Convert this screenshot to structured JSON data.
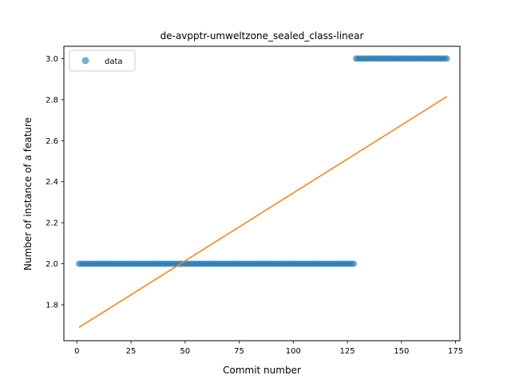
{
  "chart_data": {
    "type": "scatter",
    "title": "de-avpptr-umweltzone_sealed_class-linear",
    "xlabel": "Commit number",
    "ylabel": "Number of instance of a feature",
    "xlim": [
      -6,
      177
    ],
    "ylim": [
      1.625,
      3.06
    ],
    "xticks": [
      0,
      25,
      50,
      75,
      100,
      125,
      150,
      175
    ],
    "yticks": [
      1.8,
      2.0,
      2.2,
      2.4,
      2.6,
      2.8,
      3.0
    ],
    "legend": {
      "position": "top-left",
      "entries": [
        "data"
      ]
    },
    "grid": false,
    "series": [
      {
        "name": "data",
        "kind": "scatter",
        "color": "#1f77b4",
        "segments": [
          {
            "x_start": 1,
            "x_end": 128,
            "y": 2.0
          },
          {
            "x_start": 129,
            "x_end": 171,
            "y": 3.0
          }
        ]
      },
      {
        "kind": "line",
        "color": "#ff7f0e",
        "x": [
          1,
          171
        ],
        "y": [
          1.69,
          2.815
        ]
      }
    ]
  }
}
